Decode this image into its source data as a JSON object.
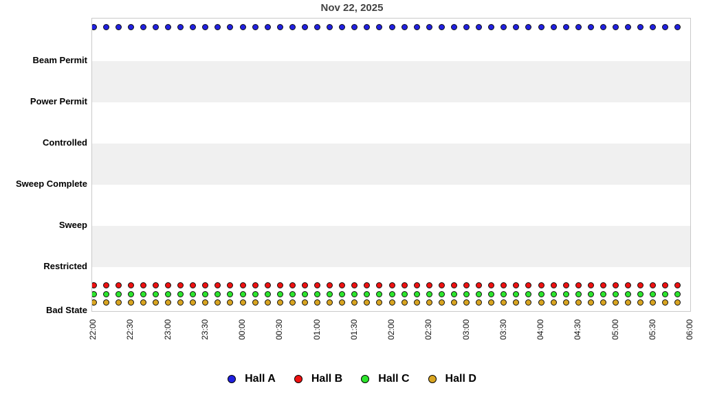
{
  "chart_data": {
    "type": "scatter",
    "title": "Nov 22, 2025",
    "xlabel": "",
    "ylabel": "",
    "legend_position": "bottom",
    "grid": "alternating horizontal bands",
    "band_colors": [
      "#ffffff",
      "#f0f0f0"
    ],
    "y_tick_labels_top_to_bottom": [
      "Beam Permit",
      "Power Permit",
      "Controlled",
      "Sweep Complete",
      "Sweep",
      "Restricted",
      "Bad State"
    ],
    "x_tick_labels": [
      "22:00",
      "22:30",
      "23:00",
      "23:30",
      "00:00",
      "00:30",
      "01:00",
      "01:30",
      "02:00",
      "02:30",
      "03:00",
      "03:30",
      "04:00",
      "04:30",
      "05:00",
      "05:30",
      "06:00"
    ],
    "x_range": [
      "22:00",
      "06:00"
    ],
    "sample_interval_minutes": 10,
    "sample_times": [
      "22:00",
      "22:10",
      "22:20",
      "22:30",
      "22:40",
      "22:50",
      "23:00",
      "23:10",
      "23:20",
      "23:30",
      "23:40",
      "23:50",
      "00:00",
      "00:10",
      "00:20",
      "00:30",
      "00:40",
      "00:50",
      "01:00",
      "01:10",
      "01:20",
      "01:30",
      "01:40",
      "01:50",
      "02:00",
      "02:10",
      "02:20",
      "02:30",
      "02:40",
      "02:50",
      "03:00",
      "03:10",
      "03:20",
      "03:30",
      "03:40",
      "03:50",
      "04:00",
      "04:10",
      "04:20",
      "04:30",
      "04:40",
      "04:50",
      "05:00",
      "05:10",
      "05:20",
      "05:30",
      "05:40",
      "05:50"
    ],
    "series": [
      {
        "name": "Hall A",
        "color": "#2020e0",
        "marker": "circle",
        "values": [
          "Beam Permit",
          "Beam Permit",
          "Beam Permit",
          "Beam Permit",
          "Beam Permit",
          "Beam Permit",
          "Beam Permit",
          "Beam Permit",
          "Beam Permit",
          "Beam Permit",
          "Beam Permit",
          "Beam Permit",
          "Beam Permit",
          "Beam Permit",
          "Beam Permit",
          "Beam Permit",
          "Beam Permit",
          "Beam Permit",
          "Beam Permit",
          "Beam Permit",
          "Beam Permit",
          "Beam Permit",
          "Beam Permit",
          "Beam Permit",
          "Beam Permit",
          "Beam Permit",
          "Beam Permit",
          "Beam Permit",
          "Beam Permit",
          "Beam Permit",
          "Beam Permit",
          "Beam Permit",
          "Beam Permit",
          "Beam Permit",
          "Beam Permit",
          "Beam Permit",
          "Beam Permit",
          "Beam Permit",
          "Beam Permit",
          "Beam Permit",
          "Beam Permit",
          "Beam Permit",
          "Beam Permit",
          "Beam Permit",
          "Beam Permit",
          "Beam Permit",
          "Beam Permit",
          "Beam Permit"
        ]
      },
      {
        "name": "Hall B",
        "color": "#ee1111",
        "marker": "circle",
        "values": [
          "Bad State",
          "Bad State",
          "Bad State",
          "Bad State",
          "Bad State",
          "Bad State",
          "Bad State",
          "Bad State",
          "Bad State",
          "Bad State",
          "Bad State",
          "Bad State",
          "Bad State",
          "Bad State",
          "Bad State",
          "Bad State",
          "Bad State",
          "Bad State",
          "Bad State",
          "Bad State",
          "Bad State",
          "Bad State",
          "Bad State",
          "Bad State",
          "Bad State",
          "Bad State",
          "Bad State",
          "Bad State",
          "Bad State",
          "Bad State",
          "Bad State",
          "Bad State",
          "Bad State",
          "Bad State",
          "Bad State",
          "Bad State",
          "Bad State",
          "Bad State",
          "Bad State",
          "Bad State",
          "Bad State",
          "Bad State",
          "Bad State",
          "Bad State",
          "Bad State",
          "Bad State",
          "Bad State",
          "Bad State"
        ]
      },
      {
        "name": "Hall C",
        "color": "#2ce52c",
        "marker": "circle",
        "values": [
          "Bad State",
          "Bad State",
          "Bad State",
          "Bad State",
          "Bad State",
          "Bad State",
          "Bad State",
          "Bad State",
          "Bad State",
          "Bad State",
          "Bad State",
          "Bad State",
          "Bad State",
          "Bad State",
          "Bad State",
          "Bad State",
          "Bad State",
          "Bad State",
          "Bad State",
          "Bad State",
          "Bad State",
          "Bad State",
          "Bad State",
          "Bad State",
          "Bad State",
          "Bad State",
          "Bad State",
          "Bad State",
          "Bad State",
          "Bad State",
          "Bad State",
          "Bad State",
          "Bad State",
          "Bad State",
          "Bad State",
          "Bad State",
          "Bad State",
          "Bad State",
          "Bad State",
          "Bad State",
          "Bad State",
          "Bad State",
          "Bad State",
          "Bad State",
          "Bad State",
          "Bad State",
          "Bad State",
          "Bad State"
        ]
      },
      {
        "name": "Hall D",
        "color": "#d9a521",
        "marker": "circle",
        "values": [
          "Bad State",
          "Bad State",
          "Bad State",
          "Bad State",
          "Bad State",
          "Bad State",
          "Bad State",
          "Bad State",
          "Bad State",
          "Bad State",
          "Bad State",
          "Bad State",
          "Bad State",
          "Bad State",
          "Bad State",
          "Bad State",
          "Bad State",
          "Bad State",
          "Bad State",
          "Bad State",
          "Bad State",
          "Bad State",
          "Bad State",
          "Bad State",
          "Bad State",
          "Bad State",
          "Bad State",
          "Bad State",
          "Bad State",
          "Bad State",
          "Bad State",
          "Bad State",
          "Bad State",
          "Bad State",
          "Bad State",
          "Bad State",
          "Bad State",
          "Bad State",
          "Bad State",
          "Bad State",
          "Bad State",
          "Bad State",
          "Bad State",
          "Bad State",
          "Bad State",
          "Bad State",
          "Bad State",
          "Bad State"
        ]
      }
    ]
  }
}
